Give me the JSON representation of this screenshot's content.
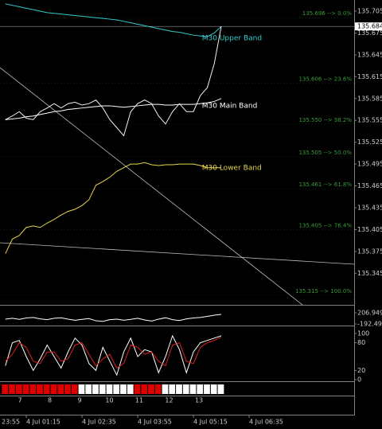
{
  "chart_data": [
    {
      "type": "line",
      "categories": [
        "23:55",
        null,
        null,
        null,
        null,
        null,
        null,
        null,
        "4 Jul 01:15",
        null,
        null,
        null,
        null,
        null,
        null,
        null,
        "4 Jul 02:35",
        null,
        null,
        null,
        null,
        null,
        null,
        null,
        "4 Jul 03:55",
        null,
        null,
        null,
        null,
        null,
        null,
        null,
        "4 Jul 05:15",
        null,
        null,
        null,
        null,
        null,
        null,
        null,
        "4 Jul 06:35"
      ],
      "series": [
        {
          "color": "#33cccc",
          "name": "M30 Upper Band",
          "values": [
            null,
            null,
            null,
            null,
            null,
            135.715,
            135.713,
            135.711,
            135.709,
            135.707,
            135.705,
            135.703,
            135.702,
            135.701,
            135.7,
            135.699,
            135.698,
            135.697,
            135.696,
            135.695,
            135.694,
            135.693,
            135.691,
            135.689,
            135.687,
            135.685,
            135.683,
            135.681,
            135.679,
            135.677,
            135.676,
            135.674,
            135.672,
            135.671,
            135.67,
            135.675,
            135.684,
            null,
            null,
            null,
            null
          ]
        },
        {
          "color": "#ffffff",
          "name": "M30 Main Band",
          "values": [
            null,
            null,
            null,
            null,
            null,
            135.556,
            135.557,
            135.558,
            135.56,
            135.561,
            135.563,
            135.565,
            135.567,
            135.568,
            135.57,
            135.571,
            135.572,
            135.573,
            135.574,
            135.575,
            135.575,
            135.574,
            135.573,
            135.574,
            135.575,
            135.576,
            135.577,
            135.577,
            135.576,
            135.576,
            135.577,
            135.577,
            135.577,
            135.578,
            135.579,
            135.581,
            135.585,
            null,
            null,
            null,
            null
          ]
        },
        {
          "color": "#e6d44a",
          "name": "M30 Lower Band",
          "values": [
            null,
            null,
            null,
            null,
            null,
            135.372,
            135.392,
            135.397,
            135.408,
            135.41,
            135.408,
            135.414,
            135.419,
            135.425,
            135.43,
            135.433,
            135.438,
            135.446,
            135.466,
            135.471,
            135.477,
            135.485,
            135.49,
            135.495,
            135.495,
            135.497,
            135.494,
            135.493,
            135.494,
            135.494,
            135.495,
            135.495,
            135.495,
            135.493,
            135.49,
            135.49,
            135.49,
            null,
            null,
            null,
            null
          ]
        },
        {
          "color": "#f0f0f0",
          "values": [
            null,
            null,
            null,
            null,
            null,
            135.556,
            135.561,
            135.567,
            135.558,
            135.556,
            135.567,
            135.572,
            135.578,
            135.572,
            135.578,
            135.58,
            135.576,
            135.578,
            135.583,
            135.572,
            135.556,
            135.545,
            135.534,
            135.567,
            135.578,
            135.583,
            135.578,
            135.561,
            135.55,
            135.567,
            135.578,
            135.567,
            135.567,
            135.589,
            135.6,
            135.633,
            135.684,
            null,
            null,
            null,
            null
          ]
        }
      ],
      "ylim": [
        135.3017,
        135.7203
      ],
      "yticks": [
        135.705,
        135.675,
        135.645,
        135.615,
        135.585,
        135.555,
        135.525,
        135.495,
        135.465,
        135.435,
        135.405,
        135.375,
        135.345
      ],
      "last_price": 135.684,
      "level_color": "#3a9a3a",
      "levels": [
        {
          "value": 135.696,
          "label": "135.696 --> 0.0%"
        },
        {
          "value": 135.606,
          "label": "135.606 --> 23.6%"
        },
        {
          "value": 135.55,
          "label": "135.550 --> 38.2%"
        },
        {
          "value": 135.505,
          "label": "135.505 --> 50.0%"
        },
        {
          "value": 135.461,
          "label": "135.461 --> 61.8%"
        },
        {
          "value": 135.405,
          "label": "135.405 --> 76.4%"
        },
        {
          "value": 135.315,
          "label": "135.315 --> 100.0%"
        }
      ]
    },
    {
      "type": "line",
      "series": [
        {
          "color": "#ffffff",
          "values": [
            null,
            null,
            null,
            null,
            null,
            -20,
            10,
            -30,
            20,
            40,
            -10,
            -40,
            10,
            30,
            -20,
            -60,
            -30,
            0,
            -80,
            -100,
            -40,
            -20,
            -60,
            -30,
            10,
            -50,
            -90,
            -20,
            30,
            -40,
            -70,
            -10,
            20,
            40,
            80,
            120,
            150,
            null,
            null,
            null,
            null
          ]
        }
      ],
      "ylim": [
        -192.4908,
        206.9495
      ],
      "yticks": [
        206.9495,
        -192.4908
      ]
    },
    {
      "type": "line",
      "series": [
        {
          "color": "#ffffff",
          "values": [
            null,
            null,
            null,
            null,
            null,
            30,
            80,
            85,
            50,
            20,
            45,
            75,
            50,
            25,
            60,
            90,
            75,
            35,
            20,
            70,
            40,
            10,
            60,
            90,
            50,
            65,
            60,
            15,
            50,
            95,
            65,
            15,
            60,
            80,
            85,
            90,
            95,
            null,
            null,
            null,
            null
          ]
        },
        {
          "color": "#e02020",
          "values": [
            null,
            null,
            null,
            null,
            null,
            40,
            55,
            80,
            70,
            40,
            35,
            60,
            60,
            40,
            45,
            75,
            80,
            55,
            30,
            45,
            55,
            25,
            35,
            75,
            70,
            55,
            60,
            40,
            30,
            75,
            80,
            40,
            35,
            70,
            80,
            85,
            92,
            null,
            null,
            null,
            null
          ]
        }
      ],
      "ylim": [
        0,
        100
      ],
      "yticks": [
        100,
        80,
        20,
        0
      ]
    },
    {
      "type": "strip",
      "values": [
        null,
        null,
        null,
        null,
        null,
        -1,
        -1,
        -1,
        -1,
        -1,
        -1,
        -1,
        -1,
        -1,
        -1,
        -1,
        1,
        1,
        1,
        1,
        1,
        1,
        1,
        1,
        -1,
        -1,
        -1,
        -1,
        1,
        1,
        1,
        1,
        1,
        1,
        1,
        1,
        1,
        null,
        null,
        null,
        null
      ],
      "positive_color": "#ffffff",
      "negative_color": "#e00000",
      "labels": [
        "7",
        "8",
        "9",
        "10",
        "11",
        "12",
        "13"
      ]
    }
  ]
}
